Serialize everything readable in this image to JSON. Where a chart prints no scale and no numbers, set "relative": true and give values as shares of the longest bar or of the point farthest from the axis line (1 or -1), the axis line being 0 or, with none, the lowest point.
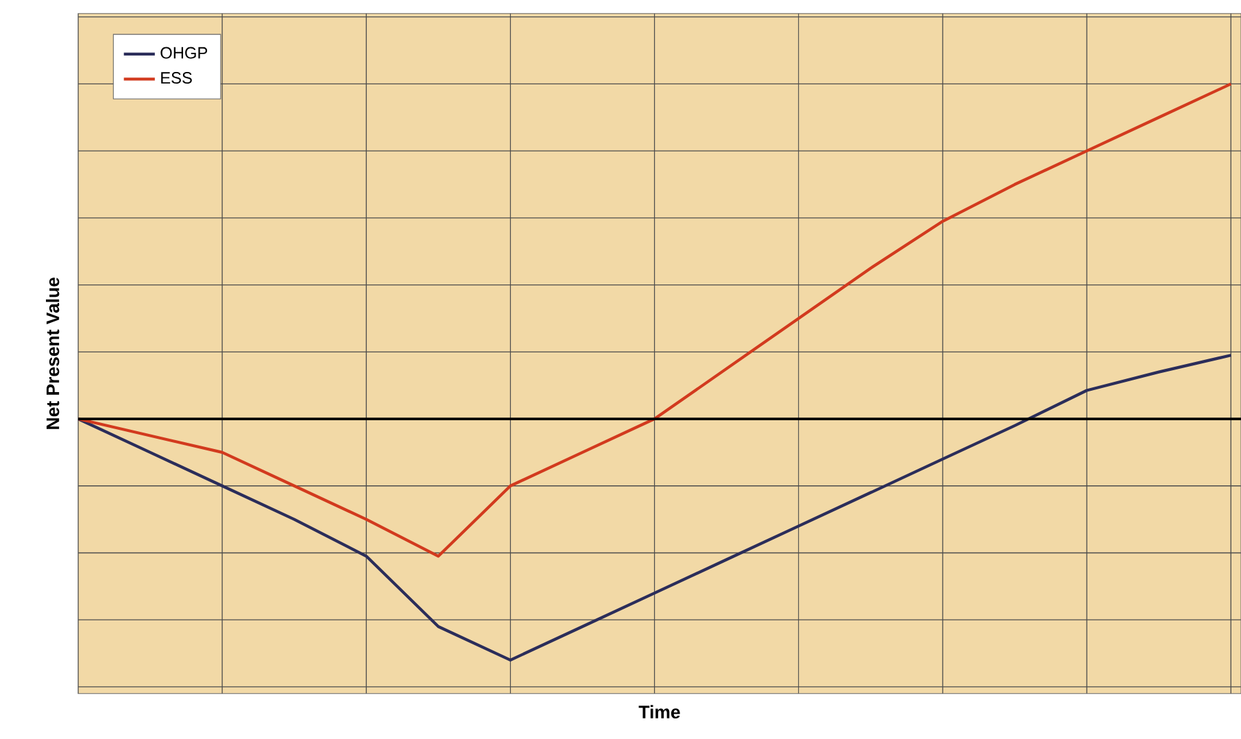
{
  "chart_data": {
    "type": "line",
    "relative": true,
    "xlabel": "Time",
    "ylabel": "Net Present Value",
    "categories": [
      null,
      null,
      null,
      null,
      null,
      null,
      null,
      null,
      null,
      null,
      null,
      null,
      null,
      null,
      null,
      null,
      null
    ],
    "grid": true,
    "legend": "top left",
    "marker": "none",
    "line_style": "solid",
    "series": [
      {
        "name": "OHGP",
        "color": "#2b2d5a",
        "values": [
          0,
          -0.1,
          -0.2,
          -0.3,
          -0.41,
          -0.62,
          -0.72,
          -0.62,
          -0.52,
          -0.42,
          -0.32,
          -0.22,
          -0.12,
          -0.02,
          0.085,
          0.14,
          0.19
        ]
      },
      {
        "name": "ESS",
        "color": "#d23a1e",
        "values": [
          0,
          -0.05,
          -0.1,
          -0.2,
          -0.3,
          -0.41,
          -0.2,
          -0.1,
          0,
          0.15,
          0.3,
          0.45,
          0.59,
          0.7,
          0.8,
          0.9,
          1
        ]
      }
    ]
  }
}
